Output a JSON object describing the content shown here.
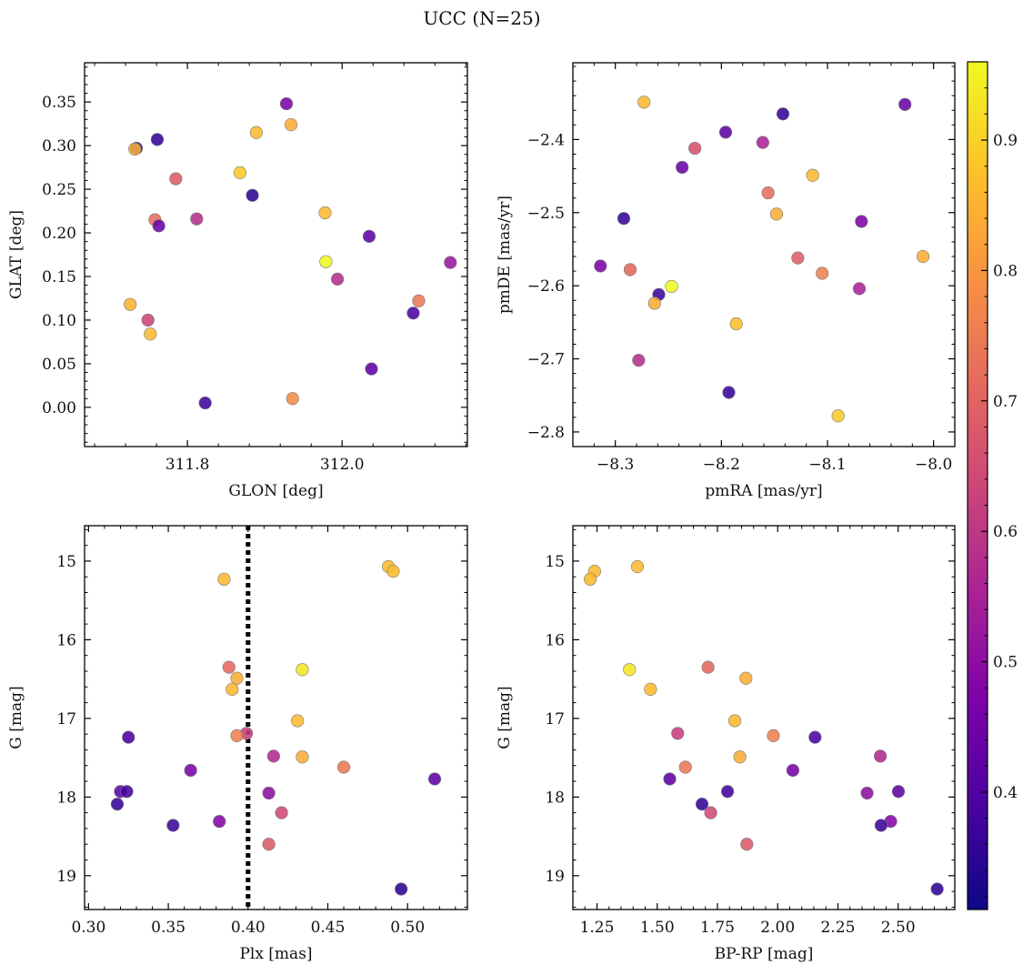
{
  "figure": {
    "title": "UCC (N=25)",
    "colorbar": {
      "colormap": "plasma",
      "range": [
        0.31,
        0.96
      ],
      "ticks": [
        0.4,
        0.5,
        0.6,
        0.7,
        0.8,
        0.9
      ],
      "tick_labels": [
        "0.4",
        "0.5",
        "0.6",
        "0.7",
        "0.8",
        "0.9"
      ]
    }
  },
  "chart_data": [
    {
      "type": "scatter",
      "panel": "top-left",
      "xlabel": "GLON [deg]",
      "ylabel": "GLAT [deg]",
      "xlim": [
        311.667,
        312.162
      ],
      "ylim": [
        -0.045,
        0.395
      ],
      "xticks": [
        311.8,
        312.0
      ],
      "xtick_labels": [
        "311.8",
        "312.0"
      ],
      "yticks": [
        0.0,
        0.05,
        0.1,
        0.15,
        0.2,
        0.25,
        0.3,
        0.35
      ],
      "ytick_labels": [
        "0.00",
        "0.05",
        "0.10",
        "0.15",
        "0.20",
        "0.25",
        "0.30",
        "0.35"
      ],
      "points": [
        {
          "x": 311.734,
          "y": 0.297,
          "c": 0.35
        },
        {
          "x": 311.732,
          "y": 0.296,
          "c": 0.84
        },
        {
          "x": 311.761,
          "y": 0.307,
          "c": 0.36
        },
        {
          "x": 311.928,
          "y": 0.348,
          "c": 0.47
        },
        {
          "x": 311.889,
          "y": 0.315,
          "c": 0.86
        },
        {
          "x": 311.934,
          "y": 0.324,
          "c": 0.84
        },
        {
          "x": 311.785,
          "y": 0.262,
          "c": 0.68
        },
        {
          "x": 311.868,
          "y": 0.269,
          "c": 0.89
        },
        {
          "x": 311.884,
          "y": 0.243,
          "c": 0.35
        },
        {
          "x": 311.758,
          "y": 0.215,
          "c": 0.72
        },
        {
          "x": 311.763,
          "y": 0.208,
          "c": 0.44
        },
        {
          "x": 311.812,
          "y": 0.216,
          "c": 0.58
        },
        {
          "x": 311.978,
          "y": 0.223,
          "c": 0.86
        },
        {
          "x": 312.035,
          "y": 0.196,
          "c": 0.42
        },
        {
          "x": 311.979,
          "y": 0.167,
          "c": 0.96
        },
        {
          "x": 312.14,
          "y": 0.166,
          "c": 0.52
        },
        {
          "x": 311.994,
          "y": 0.147,
          "c": 0.58
        },
        {
          "x": 311.726,
          "y": 0.118,
          "c": 0.85
        },
        {
          "x": 312.099,
          "y": 0.122,
          "c": 0.74
        },
        {
          "x": 312.092,
          "y": 0.108,
          "c": 0.39
        },
        {
          "x": 311.749,
          "y": 0.1,
          "c": 0.63
        },
        {
          "x": 311.752,
          "y": 0.084,
          "c": 0.86
        },
        {
          "x": 312.038,
          "y": 0.044,
          "c": 0.42
        },
        {
          "x": 311.823,
          "y": 0.005,
          "c": 0.37
        },
        {
          "x": 311.936,
          "y": 0.01,
          "c": 0.78
        }
      ]
    },
    {
      "type": "scatter",
      "panel": "top-right",
      "xlabel": "pmRA [mas/yr]",
      "ylabel": "pmDE [mas/yr]",
      "xlim": [
        -8.34,
        -7.98
      ],
      "ylim": [
        -2.82,
        -2.295
      ],
      "xticks": [
        -8.3,
        -8.2,
        -8.1,
        -8.0
      ],
      "xtick_labels": [
        "−8.3",
        "−8.2",
        "−8.1",
        "−8.0"
      ],
      "yticks": [
        -2.8,
        -2.7,
        -2.6,
        -2.5,
        -2.4
      ],
      "ytick_labels": [
        "−2.8",
        "−2.7",
        "−2.6",
        "−2.5",
        "−2.4"
      ],
      "points": [
        {
          "x": -8.273,
          "y": -2.349,
          "c": 0.86
        },
        {
          "x": -8.027,
          "y": -2.352,
          "c": 0.44
        },
        {
          "x": -8.142,
          "y": -2.365,
          "c": 0.36
        },
        {
          "x": -8.196,
          "y": -2.39,
          "c": 0.42
        },
        {
          "x": -8.161,
          "y": -2.404,
          "c": 0.55
        },
        {
          "x": -8.225,
          "y": -2.412,
          "c": 0.66
        },
        {
          "x": -8.237,
          "y": -2.438,
          "c": 0.44
        },
        {
          "x": -8.114,
          "y": -2.449,
          "c": 0.86
        },
        {
          "x": -8.156,
          "y": -2.473,
          "c": 0.72
        },
        {
          "x": -8.148,
          "y": -2.502,
          "c": 0.84
        },
        {
          "x": -8.292,
          "y": -2.508,
          "c": 0.36
        },
        {
          "x": -8.068,
          "y": -2.512,
          "c": 0.47
        },
        {
          "x": -8.01,
          "y": -2.56,
          "c": 0.84
        },
        {
          "x": -8.128,
          "y": -2.562,
          "c": 0.69
        },
        {
          "x": -8.314,
          "y": -2.573,
          "c": 0.47
        },
        {
          "x": -8.286,
          "y": -2.578,
          "c": 0.71
        },
        {
          "x": -8.105,
          "y": -2.583,
          "c": 0.76
        },
        {
          "x": -8.247,
          "y": -2.601,
          "c": 0.96
        },
        {
          "x": -8.07,
          "y": -2.604,
          "c": 0.55
        },
        {
          "x": -8.259,
          "y": -2.612,
          "c": 0.37
        },
        {
          "x": -8.263,
          "y": -2.624,
          "c": 0.84
        },
        {
          "x": -8.186,
          "y": -2.652,
          "c": 0.87
        },
        {
          "x": -8.278,
          "y": -2.702,
          "c": 0.58
        },
        {
          "x": -8.193,
          "y": -2.746,
          "c": 0.36
        },
        {
          "x": -8.09,
          "y": -2.778,
          "c": 0.89
        }
      ]
    },
    {
      "type": "scatter",
      "panel": "bottom-left",
      "xlabel": "Plx [mas]",
      "ylabel": "G [mag]",
      "xlim": [
        0.2975,
        0.5375
      ],
      "ylim": [
        19.43,
        14.55
      ],
      "y_inverted": true,
      "xticks": [
        0.3,
        0.35,
        0.4,
        0.45,
        0.5
      ],
      "xtick_labels": [
        "0.30",
        "0.35",
        "0.40",
        "0.45",
        "0.50"
      ],
      "yticks": [
        15,
        16,
        17,
        18,
        19
      ],
      "ytick_labels": [
        "15",
        "16",
        "17",
        "18",
        "19"
      ],
      "vline": {
        "x": 0.4,
        "style": "dotted",
        "color": "#000000"
      },
      "points": [
        {
          "x": 0.488,
          "y": 15.07,
          "c": 0.86
        },
        {
          "x": 0.491,
          "y": 15.13,
          "c": 0.86
        },
        {
          "x": 0.385,
          "y": 15.23,
          "c": 0.86
        },
        {
          "x": 0.388,
          "y": 16.35,
          "c": 0.71
        },
        {
          "x": 0.434,
          "y": 16.38,
          "c": 0.93
        },
        {
          "x": 0.393,
          "y": 16.49,
          "c": 0.84
        },
        {
          "x": 0.39,
          "y": 16.63,
          "c": 0.86
        },
        {
          "x": 0.431,
          "y": 17.03,
          "c": 0.86
        },
        {
          "x": 0.399,
          "y": 17.19,
          "c": 0.62
        },
        {
          "x": 0.393,
          "y": 17.22,
          "c": 0.76
        },
        {
          "x": 0.325,
          "y": 17.24,
          "c": 0.39
        },
        {
          "x": 0.416,
          "y": 17.48,
          "c": 0.57
        },
        {
          "x": 0.434,
          "y": 17.49,
          "c": 0.84
        },
        {
          "x": 0.46,
          "y": 17.62,
          "c": 0.74
        },
        {
          "x": 0.364,
          "y": 17.66,
          "c": 0.46
        },
        {
          "x": 0.517,
          "y": 17.77,
          "c": 0.42
        },
        {
          "x": 0.32,
          "y": 17.93,
          "c": 0.42
        },
        {
          "x": 0.324,
          "y": 17.93,
          "c": 0.38
        },
        {
          "x": 0.413,
          "y": 17.95,
          "c": 0.5
        },
        {
          "x": 0.318,
          "y": 18.09,
          "c": 0.36
        },
        {
          "x": 0.421,
          "y": 18.2,
          "c": 0.64
        },
        {
          "x": 0.382,
          "y": 18.31,
          "c": 0.48
        },
        {
          "x": 0.353,
          "y": 18.36,
          "c": 0.37
        },
        {
          "x": 0.413,
          "y": 18.6,
          "c": 0.68
        },
        {
          "x": 0.496,
          "y": 19.17,
          "c": 0.35
        }
      ]
    },
    {
      "type": "scatter",
      "panel": "bottom-right",
      "xlabel": "BP-RP [mag]",
      "ylabel": "G [mag]",
      "xlim": [
        1.15,
        2.735
      ],
      "ylim": [
        19.43,
        14.55
      ],
      "y_inverted": true,
      "xticks": [
        1.25,
        1.5,
        1.75,
        2.0,
        2.25,
        2.5
      ],
      "xtick_labels": [
        "1.25",
        "1.50",
        "1.75",
        "2.00",
        "2.25",
        "2.50"
      ],
      "yticks": [
        15,
        16,
        17,
        18,
        19
      ],
      "ytick_labels": [
        "15",
        "16",
        "17",
        "18",
        "19"
      ],
      "points": [
        {
          "x": 1.418,
          "y": 15.07,
          "c": 0.86
        },
        {
          "x": 1.24,
          "y": 15.13,
          "c": 0.86
        },
        {
          "x": 1.222,
          "y": 15.23,
          "c": 0.86
        },
        {
          "x": 1.711,
          "y": 16.35,
          "c": 0.71
        },
        {
          "x": 1.385,
          "y": 16.38,
          "c": 0.93
        },
        {
          "x": 1.868,
          "y": 16.49,
          "c": 0.84
        },
        {
          "x": 1.472,
          "y": 16.63,
          "c": 0.86
        },
        {
          "x": 1.822,
          "y": 17.03,
          "c": 0.86
        },
        {
          "x": 1.585,
          "y": 17.19,
          "c": 0.62
        },
        {
          "x": 1.982,
          "y": 17.22,
          "c": 0.76
        },
        {
          "x": 2.155,
          "y": 17.24,
          "c": 0.39
        },
        {
          "x": 2.426,
          "y": 17.48,
          "c": 0.57
        },
        {
          "x": 1.843,
          "y": 17.49,
          "c": 0.84
        },
        {
          "x": 1.617,
          "y": 17.62,
          "c": 0.74
        },
        {
          "x": 2.063,
          "y": 17.66,
          "c": 0.46
        },
        {
          "x": 1.552,
          "y": 17.77,
          "c": 0.42
        },
        {
          "x": 2.501,
          "y": 17.93,
          "c": 0.42
        },
        {
          "x": 1.792,
          "y": 17.93,
          "c": 0.38
        },
        {
          "x": 2.371,
          "y": 17.95,
          "c": 0.5
        },
        {
          "x": 1.686,
          "y": 18.09,
          "c": 0.36
        },
        {
          "x": 1.722,
          "y": 18.2,
          "c": 0.64
        },
        {
          "x": 2.469,
          "y": 18.31,
          "c": 0.48
        },
        {
          "x": 2.429,
          "y": 18.36,
          "c": 0.37
        },
        {
          "x": 1.872,
          "y": 18.6,
          "c": 0.68
        },
        {
          "x": 2.662,
          "y": 19.17,
          "c": 0.35
        }
      ]
    }
  ]
}
